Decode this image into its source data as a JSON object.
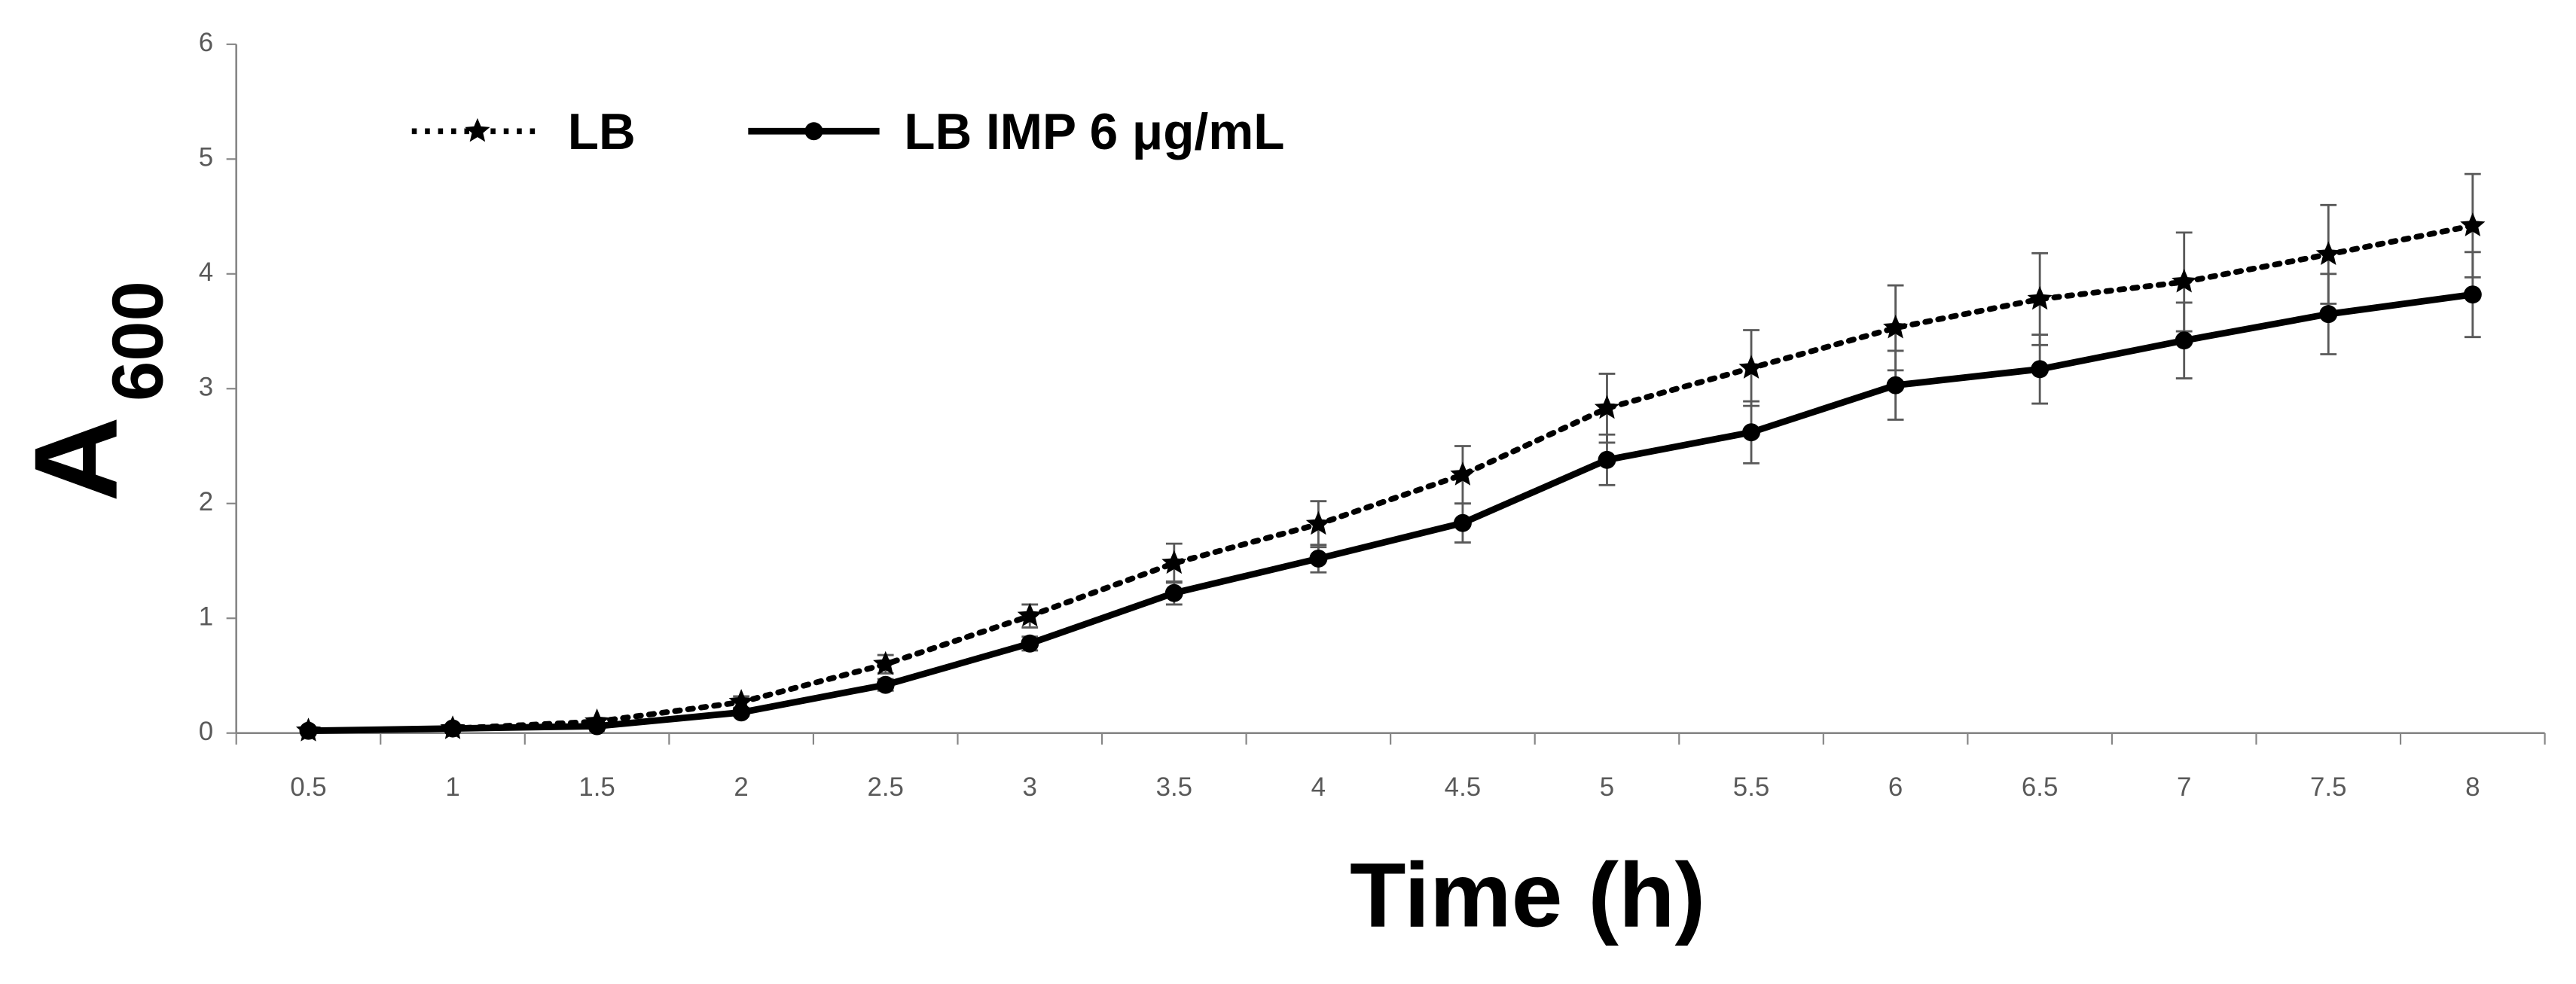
{
  "chart_data": {
    "type": "line",
    "x_label": "Time (h)",
    "y_label": {
      "main": "A",
      "sub": "600"
    },
    "categories": [
      "0.5",
      "1",
      "1.5",
      "2",
      "2.5",
      "3",
      "3.5",
      "4",
      "4.5",
      "5",
      "5.5",
      "6",
      "6.5",
      "7",
      "7.5",
      "8"
    ],
    "series": [
      {
        "name": "LB",
        "color": "#000000",
        "dash": "dotted",
        "marker": "star",
        "values": [
          0.02,
          0.04,
          0.1,
          0.27,
          0.6,
          1.02,
          1.48,
          1.82,
          2.25,
          2.83,
          3.18,
          3.53,
          3.78,
          3.93,
          4.17,
          4.42
        ],
        "errors": [
          0.01,
          0.02,
          0.03,
          0.05,
          0.08,
          0.1,
          0.17,
          0.2,
          0.25,
          0.3,
          0.33,
          0.37,
          0.4,
          0.43,
          0.43,
          0.45
        ]
      },
      {
        "name": "LB IMP 6 μg/mL",
        "color": "#000000",
        "dash": "solid",
        "marker": "circle",
        "values": [
          0.02,
          0.04,
          0.06,
          0.18,
          0.42,
          0.78,
          1.22,
          1.52,
          1.83,
          2.38,
          2.62,
          3.03,
          3.17,
          3.42,
          3.65,
          3.82
        ],
        "errors": [
          0.01,
          0.01,
          0.02,
          0.03,
          0.05,
          0.06,
          0.1,
          0.12,
          0.17,
          0.22,
          0.27,
          0.3,
          0.3,
          0.33,
          0.35,
          0.37
        ]
      }
    ],
    "ylim": [
      0,
      6
    ],
    "yticks": [
      0,
      1,
      2,
      3,
      4,
      5,
      6
    ],
    "grid": false,
    "legend": "top-left"
  }
}
